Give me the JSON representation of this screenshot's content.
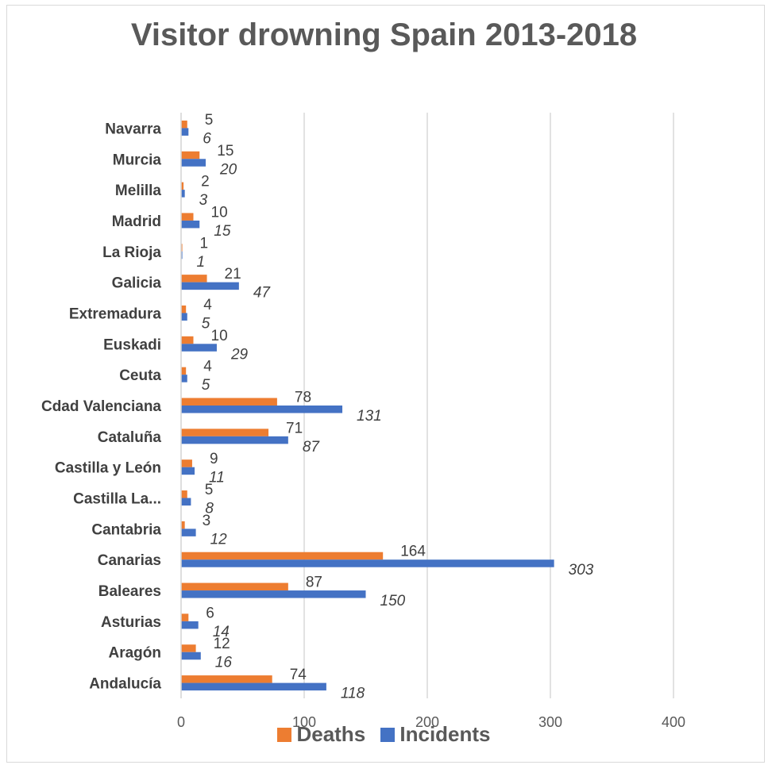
{
  "colors": {
    "deaths": "#ED7D31",
    "incidents": "#4472C4",
    "grid": "#d9d9d9"
  },
  "chart_data": {
    "type": "bar",
    "orientation": "horizontal",
    "title": "Visitor drowning Spain 2013-2018",
    "categories": [
      "Andalucía",
      "Aragón",
      "Asturias",
      "Baleares",
      "Canarias",
      "Cantabria",
      "Castilla La...",
      "Castilla y León",
      "Cataluña",
      "Cdad Valenciana",
      "Ceuta",
      "Euskadi",
      "Extremadura",
      "Galicia",
      "La Rioja",
      "Madrid",
      "Melilla",
      "Murcia",
      "Navarra"
    ],
    "series": [
      {
        "name": "Deaths",
        "values": [
          74,
          12,
          6,
          87,
          164,
          3,
          5,
          9,
          71,
          78,
          4,
          10,
          4,
          21,
          1,
          10,
          2,
          15,
          5
        ]
      },
      {
        "name": "Incidents",
        "values": [
          118,
          16,
          14,
          150,
          303,
          12,
          8,
          11,
          87,
          131,
          5,
          29,
          5,
          47,
          1,
          15,
          3,
          20,
          6
        ]
      }
    ],
    "xlim": [
      0,
      400
    ],
    "xticks": [
      "0",
      "100",
      "200",
      "300",
      "400"
    ],
    "grid": true,
    "legend": "bottom"
  }
}
